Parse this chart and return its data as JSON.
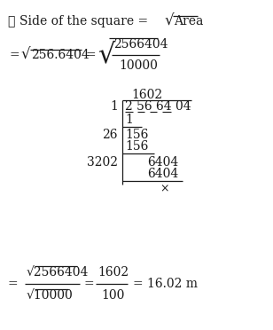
{
  "bg_color": "#ffffff",
  "text_color": "#1a1a1a",
  "frac_numerator": "2566404",
  "frac_denominator": "10000",
  "long_div_result": "1602",
  "long_div_divisor1": "1",
  "long_div_dividend": "2 56 64 04",
  "long_div_sub1": "1",
  "long_div_divisor2": "26",
  "long_div_bring1": "156",
  "long_div_sub2": "156",
  "long_div_divisor3": "3202",
  "long_div_bring2": "6404",
  "long_div_sub3": "6404",
  "long_div_remainder": "×"
}
